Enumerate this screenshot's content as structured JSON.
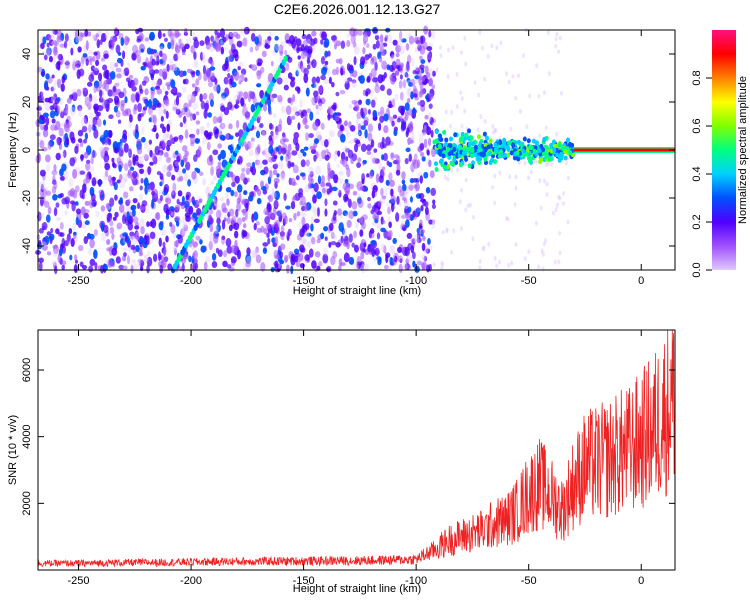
{
  "title": "C2E6.2026.001.12.13.G27",
  "chart_data": [
    {
      "type": "heatmap",
      "xlabel": "Height of straight line (km)",
      "ylabel": "Frequency (Hz)",
      "xlim": [
        -268,
        15
      ],
      "ylim": [
        -50,
        50
      ],
      "xticks": [
        -250,
        -200,
        -150,
        -100,
        -50,
        0
      ],
      "yticks": [
        -40,
        -20,
        0,
        20,
        40
      ],
      "features": {
        "noise_region_x": [
          -268,
          -92
        ],
        "diagonal_track": {
          "x": [
            -208,
            -158
          ],
          "y": [
            -50,
            38
          ]
        },
        "carrier_line": {
          "x": [
            -30,
            15
          ],
          "y": 0
        },
        "carrier_blob": {
          "x": [
            -92,
            -30
          ],
          "y_spread": [
            -10,
            10
          ]
        }
      },
      "colorbar": {
        "label": "Normalized spectral amplitude",
        "ticks": [
          "0.0",
          "0.2",
          "0.4",
          "0.6",
          "0.8"
        ],
        "range": [
          0,
          1
        ],
        "colormap": [
          "#e0c8ff",
          "#a050ff",
          "#5000ff",
          "#0050ff",
          "#00d0ff",
          "#00ff80",
          "#80ff00",
          "#ffff00",
          "#ff8000",
          "#ff0000",
          "#ff1080"
        ]
      }
    },
    {
      "type": "line",
      "xlabel": "Height of straight line (km)",
      "ylabel": "SNR (10 * v/v)",
      "xlim": [
        -268,
        15
      ],
      "ylim": [
        0,
        7200
      ],
      "xticks": [
        -250,
        -200,
        -150,
        -100,
        -50,
        0
      ],
      "yticks": [
        2000,
        4000,
        6000
      ],
      "series": [
        {
          "color": "#ee2222",
          "x": [
            -268,
            -250,
            -230,
            -210,
            -190,
            -170,
            -150,
            -130,
            -110,
            -100,
            -92,
            -85,
            -80,
            -75,
            -70,
            -65,
            -60,
            -55,
            -50,
            -45,
            -40,
            -35,
            -30,
            -25,
            -20,
            -15,
            -10,
            -5,
            0,
            5,
            10,
            15
          ],
          "y": [
            200,
            200,
            220,
            230,
            250,
            260,
            270,
            280,
            300,
            320,
            600,
            900,
            1000,
            1100,
            1200,
            1400,
            1500,
            1800,
            2300,
            2600,
            2200,
            1800,
            2600,
            3100,
            3200,
            3300,
            3500,
            3600,
            3900,
            4200,
            4700,
            5300
          ]
        }
      ]
    }
  ]
}
